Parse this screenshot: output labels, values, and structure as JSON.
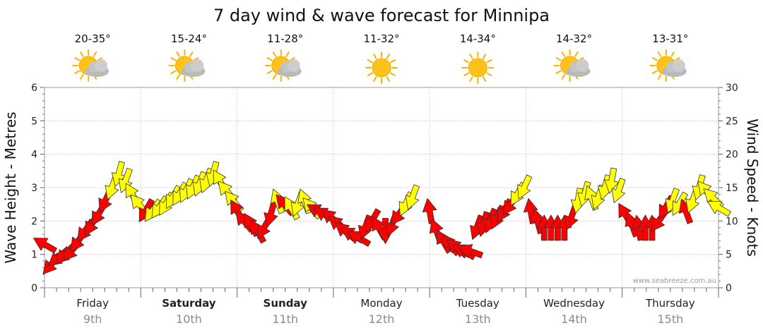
{
  "page_title": "7 day wind & wave forecast for Minnipa",
  "credit": "www.seabreeze.com.au",
  "colors": {
    "strong_wind": "#ff0000",
    "light_wind": "#ffff00",
    "arrow_stroke": "#333333",
    "sun": "#f7b500",
    "cloud": "#b9b9b9"
  },
  "days": [
    {
      "name": "Friday",
      "date": "9th",
      "temp": "20-35°",
      "icon": "partly-cloudy-icon",
      "bold": false
    },
    {
      "name": "Saturday",
      "date": "10th",
      "temp": "15-24°",
      "icon": "partly-cloudy-icon",
      "bold": true
    },
    {
      "name": "Sunday",
      "date": "11th",
      "temp": "11-28°",
      "icon": "partly-cloudy-icon",
      "bold": true
    },
    {
      "name": "Monday",
      "date": "12th",
      "temp": "11-32°",
      "icon": "sunny-icon",
      "bold": false
    },
    {
      "name": "Tuesday",
      "date": "13th",
      "temp": "14-34°",
      "icon": "sunny-icon",
      "bold": false
    },
    {
      "name": "Wednesday",
      "date": "14th",
      "temp": "14-32°",
      "icon": "partly-cloudy-icon",
      "bold": false
    },
    {
      "name": "Thursday",
      "date": "15th",
      "temp": "13-31°",
      "icon": "partly-cloudy-icon",
      "bold": false
    }
  ],
  "chart_data": {
    "type": "scatter",
    "title": "7 day wind & wave forecast for Minnipa",
    "y_left_label": "Wave Height - Metres",
    "y_right_label": "Wind Speed - Knots",
    "y_left_range": [
      0,
      6
    ],
    "y_left_ticks": [
      "0",
      "1",
      "2",
      "3",
      "4",
      "5",
      "6"
    ],
    "y_right_range": [
      0,
      30
    ],
    "y_right_ticks": [
      "0",
      "5",
      "10",
      "15",
      "20",
      "25",
      "30"
    ],
    "x_unit": "days from Friday 00:00",
    "x_range": [
      0,
      7
    ],
    "legend": "none",
    "series": [
      {
        "name": "Friday",
        "points": [
          {
            "x": 0.0,
            "knots": 6.5,
            "dir": 300,
            "strong": true
          },
          {
            "x": 0.07,
            "knots": 3.5,
            "dir": 220,
            "strong": true
          },
          {
            "x": 0.14,
            "knots": 4.5,
            "dir": 230,
            "strong": true
          },
          {
            "x": 0.21,
            "knots": 5.0,
            "dir": 225,
            "strong": true
          },
          {
            "x": 0.28,
            "knots": 5.5,
            "dir": 220,
            "strong": true
          },
          {
            "x": 0.35,
            "knots": 7.0,
            "dir": 215,
            "strong": true
          },
          {
            "x": 0.42,
            "knots": 8.5,
            "dir": 215,
            "strong": true
          },
          {
            "x": 0.49,
            "knots": 9.5,
            "dir": 210,
            "strong": true
          },
          {
            "x": 0.56,
            "knots": 11.0,
            "dir": 210,
            "strong": true
          },
          {
            "x": 0.63,
            "knots": 13.0,
            "dir": 205,
            "strong": true
          },
          {
            "x": 0.7,
            "knots": 15.0,
            "dir": 200,
            "strong": false
          },
          {
            "x": 0.77,
            "knots": 17.0,
            "dir": 195,
            "strong": false
          },
          {
            "x": 0.84,
            "knots": 16.0,
            "dir": 200,
            "strong": false
          },
          {
            "x": 0.91,
            "knots": 14.0,
            "dir": 330,
            "strong": false
          },
          {
            "x": 0.98,
            "knots": 12.5,
            "dir": 320,
            "strong": false
          }
        ]
      },
      {
        "name": "Saturday",
        "points": [
          {
            "x": 1.05,
            "knots": 11.5,
            "dir": 210,
            "strong": true
          },
          {
            "x": 1.12,
            "knots": 11.5,
            "dir": 215,
            "strong": false
          },
          {
            "x": 1.19,
            "knots": 12.0,
            "dir": 215,
            "strong": false
          },
          {
            "x": 1.26,
            "knots": 12.5,
            "dir": 210,
            "strong": false
          },
          {
            "x": 1.33,
            "knots": 13.5,
            "dir": 210,
            "strong": false
          },
          {
            "x": 1.4,
            "knots": 14.0,
            "dir": 210,
            "strong": false
          },
          {
            "x": 1.47,
            "knots": 14.5,
            "dir": 205,
            "strong": false
          },
          {
            "x": 1.54,
            "knots": 15.0,
            "dir": 205,
            "strong": false
          },
          {
            "x": 1.61,
            "knots": 15.5,
            "dir": 200,
            "strong": false
          },
          {
            "x": 1.68,
            "knots": 16.0,
            "dir": 200,
            "strong": false
          },
          {
            "x": 1.75,
            "knots": 17.0,
            "dir": 195,
            "strong": false
          },
          {
            "x": 1.82,
            "knots": 16.0,
            "dir": 330,
            "strong": false
          },
          {
            "x": 1.89,
            "knots": 14.5,
            "dir": 320,
            "strong": false
          },
          {
            "x": 1.96,
            "knots": 13.0,
            "dir": 320,
            "strong": false
          }
        ]
      },
      {
        "name": "Sunday",
        "points": [
          {
            "x": 2.0,
            "knots": 11.5,
            "dir": 330,
            "strong": true
          },
          {
            "x": 2.07,
            "knots": 10.0,
            "dir": 320,
            "strong": true
          },
          {
            "x": 2.14,
            "knots": 9.5,
            "dir": 330,
            "strong": true
          },
          {
            "x": 2.21,
            "knots": 8.5,
            "dir": 330,
            "strong": true
          },
          {
            "x": 2.28,
            "knots": 9.0,
            "dir": 210,
            "strong": true
          },
          {
            "x": 2.35,
            "knots": 11.0,
            "dir": 195,
            "strong": true
          },
          {
            "x": 2.42,
            "knots": 13.0,
            "dir": 340,
            "strong": false
          },
          {
            "x": 2.49,
            "knots": 12.5,
            "dir": 320,
            "strong": true
          },
          {
            "x": 2.56,
            "knots": 12.0,
            "dir": 330,
            "strong": false
          },
          {
            "x": 2.63,
            "knots": 12.5,
            "dir": 200,
            "strong": false
          },
          {
            "x": 2.7,
            "knots": 13.0,
            "dir": 340,
            "strong": false
          },
          {
            "x": 2.77,
            "knots": 12.0,
            "dir": 320,
            "strong": false
          },
          {
            "x": 2.84,
            "knots": 11.5,
            "dir": 300,
            "strong": true
          },
          {
            "x": 2.91,
            "knots": 11.0,
            "dir": 300,
            "strong": true
          },
          {
            "x": 2.98,
            "knots": 10.5,
            "dir": 310,
            "strong": true
          }
        ]
      },
      {
        "name": "Monday",
        "points": [
          {
            "x": 3.05,
            "knots": 9.5,
            "dir": 310,
            "strong": true
          },
          {
            "x": 3.12,
            "knots": 8.5,
            "dir": 310,
            "strong": true
          },
          {
            "x": 3.19,
            "knots": 8.0,
            "dir": 300,
            "strong": true
          },
          {
            "x": 3.26,
            "knots": 7.5,
            "dir": 300,
            "strong": true
          },
          {
            "x": 3.33,
            "knots": 9.0,
            "dir": 200,
            "strong": true
          },
          {
            "x": 3.4,
            "knots": 10.0,
            "dir": 210,
            "strong": true
          },
          {
            "x": 3.47,
            "knots": 9.0,
            "dir": 330,
            "strong": true
          },
          {
            "x": 3.54,
            "knots": 8.5,
            "dir": 180,
            "strong": true
          },
          {
            "x": 3.61,
            "knots": 9.5,
            "dir": 200,
            "strong": true
          },
          {
            "x": 3.68,
            "knots": 11.0,
            "dir": 215,
            "strong": true
          },
          {
            "x": 3.75,
            "knots": 12.5,
            "dir": 205,
            "strong": false
          },
          {
            "x": 3.82,
            "knots": 13.5,
            "dir": 200,
            "strong": false
          }
        ]
      },
      {
        "name": "Tuesday",
        "points": [
          {
            "x": 4.0,
            "knots": 11.5,
            "dir": 350,
            "strong": true
          },
          {
            "x": 4.07,
            "knots": 8.5,
            "dir": 340,
            "strong": true
          },
          {
            "x": 4.14,
            "knots": 7.0,
            "dir": 330,
            "strong": true
          },
          {
            "x": 4.21,
            "knots": 6.5,
            "dir": 320,
            "strong": true
          },
          {
            "x": 4.28,
            "knots": 6.0,
            "dir": 310,
            "strong": true
          },
          {
            "x": 4.35,
            "knots": 5.5,
            "dir": 300,
            "strong": true
          },
          {
            "x": 4.42,
            "knots": 5.5,
            "dir": 290,
            "strong": true
          },
          {
            "x": 4.49,
            "knots": 9.0,
            "dir": 200,
            "strong": true
          },
          {
            "x": 4.56,
            "knots": 9.5,
            "dir": 195,
            "strong": true
          },
          {
            "x": 4.63,
            "knots": 10.0,
            "dir": 200,
            "strong": true
          },
          {
            "x": 4.7,
            "knots": 10.5,
            "dir": 205,
            "strong": true
          },
          {
            "x": 4.77,
            "knots": 11.5,
            "dir": 210,
            "strong": true
          },
          {
            "x": 4.84,
            "knots": 12.5,
            "dir": 215,
            "strong": true
          },
          {
            "x": 4.91,
            "knots": 14.0,
            "dir": 210,
            "strong": false
          },
          {
            "x": 4.98,
            "knots": 15.0,
            "dir": 205,
            "strong": false
          }
        ]
      },
      {
        "name": "Wednesday",
        "points": [
          {
            "x": 5.05,
            "knots": 11.5,
            "dir": 350,
            "strong": true
          },
          {
            "x": 5.12,
            "knots": 10.0,
            "dir": 345,
            "strong": true
          },
          {
            "x": 5.19,
            "knots": 9.0,
            "dir": 0,
            "strong": true
          },
          {
            "x": 5.26,
            "knots": 9.0,
            "dir": 0,
            "strong": true
          },
          {
            "x": 5.33,
            "knots": 9.0,
            "dir": 0,
            "strong": true
          },
          {
            "x": 5.4,
            "knots": 9.0,
            "dir": 0,
            "strong": true
          },
          {
            "x": 5.47,
            "knots": 10.5,
            "dir": 200,
            "strong": true
          },
          {
            "x": 5.54,
            "knots": 13.0,
            "dir": 190,
            "strong": false
          },
          {
            "x": 5.61,
            "knots": 14.0,
            "dir": 195,
            "strong": false
          },
          {
            "x": 5.68,
            "knots": 13.5,
            "dir": 340,
            "strong": false
          },
          {
            "x": 5.75,
            "knots": 13.5,
            "dir": 200,
            "strong": false
          },
          {
            "x": 5.82,
            "knots": 15.0,
            "dir": 195,
            "strong": false
          },
          {
            "x": 5.89,
            "knots": 16.0,
            "dir": 190,
            "strong": false
          },
          {
            "x": 5.96,
            "knots": 14.5,
            "dir": 200,
            "strong": false
          }
        ]
      },
      {
        "name": "Thursday",
        "points": [
          {
            "x": 6.03,
            "knots": 11.0,
            "dir": 330,
            "strong": true
          },
          {
            "x": 6.1,
            "knots": 9.5,
            "dir": 340,
            "strong": true
          },
          {
            "x": 6.17,
            "knots": 9.0,
            "dir": 350,
            "strong": true
          },
          {
            "x": 6.24,
            "knots": 9.0,
            "dir": 0,
            "strong": true
          },
          {
            "x": 6.31,
            "knots": 9.0,
            "dir": 0,
            "strong": true
          },
          {
            "x": 6.38,
            "knots": 10.0,
            "dir": 215,
            "strong": true
          },
          {
            "x": 6.45,
            "knots": 12.0,
            "dir": 210,
            "strong": true
          },
          {
            "x": 6.52,
            "knots": 13.0,
            "dir": 200,
            "strong": false
          },
          {
            "x": 6.59,
            "knots": 12.5,
            "dir": 210,
            "strong": false
          },
          {
            "x": 6.66,
            "knots": 11.5,
            "dir": 340,
            "strong": true
          },
          {
            "x": 6.73,
            "knots": 13.0,
            "dir": 200,
            "strong": false
          },
          {
            "x": 6.8,
            "knots": 15.0,
            "dir": 195,
            "strong": false
          },
          {
            "x": 6.87,
            "knots": 14.5,
            "dir": 320,
            "strong": false
          },
          {
            "x": 6.94,
            "knots": 13.5,
            "dir": 315,
            "strong": false
          },
          {
            "x": 7.0,
            "knots": 12.0,
            "dir": 300,
            "strong": false
          }
        ]
      }
    ]
  }
}
